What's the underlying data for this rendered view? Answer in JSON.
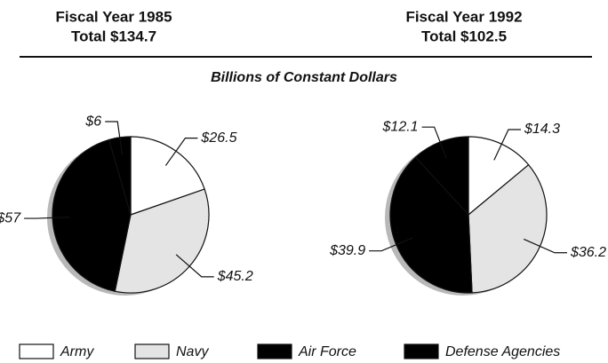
{
  "subtitle": "Billions of Constant Dollars",
  "chart_data": [
    {
      "type": "pie",
      "title": "Fiscal Year 1985",
      "total": "Total $134.7",
      "categories": [
        "Army",
        "Navy",
        "Air Force",
        "Defense Agencies"
      ],
      "values": [
        26.5,
        45.2,
        57,
        6
      ],
      "value_labels": [
        "$26.5",
        "$45.2",
        "$57",
        "$6"
      ],
      "colors": [
        "#ffffff",
        "#e4e4e4",
        "#000000",
        "#000000"
      ]
    },
    {
      "type": "pie",
      "title": "Fiscal Year 1992",
      "total": "Total $102.5",
      "categories": [
        "Army",
        "Navy",
        "Air Force",
        "Defense Agencies"
      ],
      "values": [
        14.3,
        36.2,
        39.9,
        12.1
      ],
      "value_labels": [
        "$14.3",
        "$36.2",
        "$39.9",
        "$12.1"
      ],
      "colors": [
        "#ffffff",
        "#e4e4e4",
        "#000000",
        "#000000"
      ]
    }
  ]
}
